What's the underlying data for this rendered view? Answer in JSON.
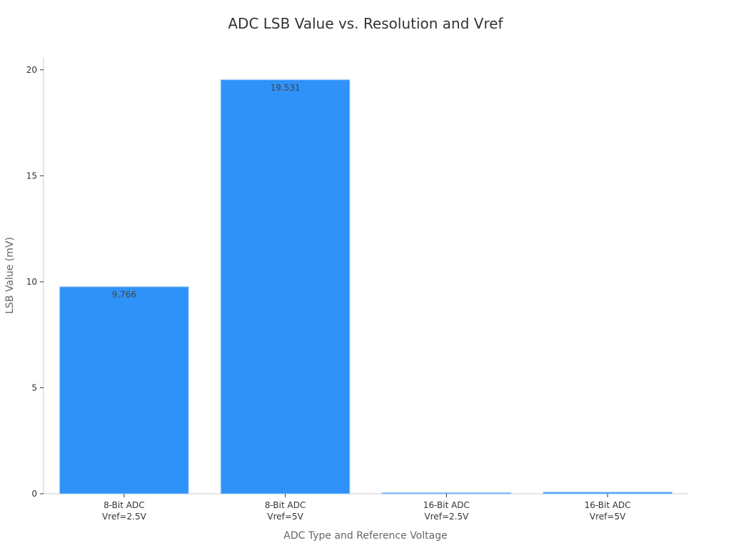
{
  "chart_data": {
    "type": "bar",
    "title": "ADC LSB Value vs. Resolution and Vref",
    "xlabel": "ADC Type and Reference Voltage",
    "ylabel": "LSB Value (mV)",
    "categories": [
      [
        "8-Bit ADC",
        "Vref=2.5V"
      ],
      [
        "8-Bit ADC",
        "Vref=5V"
      ],
      [
        "16-Bit ADC",
        "Vref=2.5V"
      ],
      [
        "16-Bit ADC",
        "Vref=5V"
      ]
    ],
    "values": [
      9.766,
      19.531,
      0.038,
      0.076
    ],
    "data_labels": [
      "9.766",
      "19.531",
      "",
      ""
    ],
    "ylim": [
      0,
      20.6
    ],
    "yticks": [
      0,
      5,
      10,
      15,
      20
    ],
    "ytick_labels": [
      "0",
      "5",
      "10",
      "15",
      "20"
    ],
    "grid": false,
    "bar_color": "#2f92f8",
    "bar_edge_color": "#9fcaf6"
  }
}
